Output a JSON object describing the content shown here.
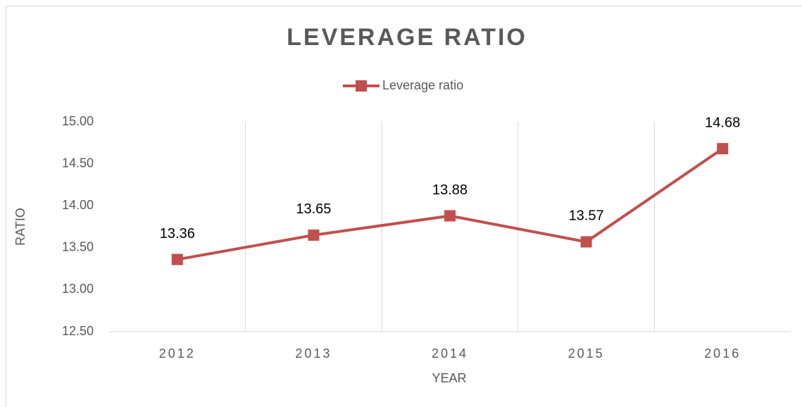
{
  "chart_data": {
    "type": "line",
    "title": "LEVERAGE RATIO",
    "x_label": "YEAR",
    "y_label": "RATIO",
    "categories": [
      "2012",
      "2013",
      "2014",
      "2015",
      "2016"
    ],
    "series": [
      {
        "name": "Leverage ratio",
        "color": "#c0504d",
        "values": [
          13.36,
          13.65,
          13.88,
          13.57,
          14.68
        ]
      }
    ],
    "ylim": [
      12.5,
      15
    ],
    "yticks": [
      {
        "value": 12.5,
        "label": "12.50"
      },
      {
        "value": 13,
        "label": "13.00"
      },
      {
        "value": 13.5,
        "label": "13.50"
      },
      {
        "value": 14,
        "label": "14.00"
      },
      {
        "value": 14.5,
        "label": "14.50"
      },
      {
        "value": 15,
        "label": "15.00"
      }
    ],
    "grid": true,
    "legend": "top"
  }
}
